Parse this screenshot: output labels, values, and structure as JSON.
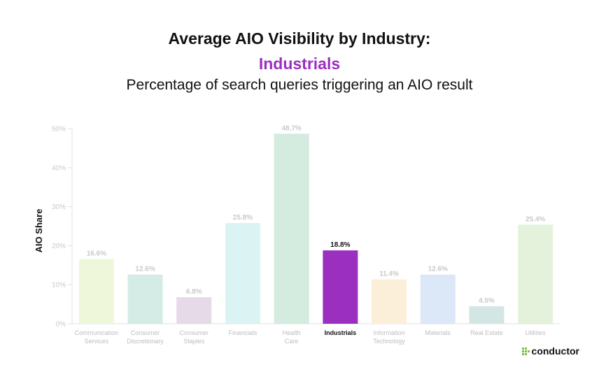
{
  "header": {
    "title": "Average AIO Visibility by Industry:",
    "highlight": "Industrials",
    "subtitle": "Percentage of search queries triggering an AIO result"
  },
  "brand": {
    "name": "conductor",
    "mark_color": "#7ac143"
  },
  "colors": {
    "highlight": "#9b2fc0"
  },
  "chart_data": {
    "type": "bar",
    "ylabel": "AIO Share",
    "ylim": [
      0,
      50
    ],
    "yticks": [
      "0%",
      "10%",
      "20%",
      "30%",
      "40%",
      "50%"
    ],
    "categories": [
      [
        "Communication",
        "Services"
      ],
      [
        "Consumer",
        "Discretionary"
      ],
      [
        "Consumer",
        "Staples"
      ],
      [
        "Financials"
      ],
      [
        "Health",
        "Care"
      ],
      [
        "Industrials"
      ],
      [
        "Information",
        "Technology"
      ],
      [
        "Materials"
      ],
      [
        "Real Estate"
      ],
      [
        "Utilities"
      ]
    ],
    "values": [
      16.6,
      12.6,
      6.8,
      25.8,
      48.7,
      18.8,
      11.4,
      12.6,
      4.5,
      25.4
    ],
    "labels": [
      "16.6%",
      "12.6%",
      "6.8%",
      "25.8%",
      "48.7%",
      "18.8%",
      "11.4%",
      "12.6%",
      "4.5%",
      "25.4%"
    ],
    "colors": [
      "#eef7d9",
      "#d4ebe6",
      "#e6d9e8",
      "#dcf3f4",
      "#d4ebe0",
      "#9b2fc0",
      "#fcefd9",
      "#dce7f7",
      "#d4e6e4",
      "#e4f2dc"
    ],
    "highlight_index": 5,
    "grid": false
  }
}
